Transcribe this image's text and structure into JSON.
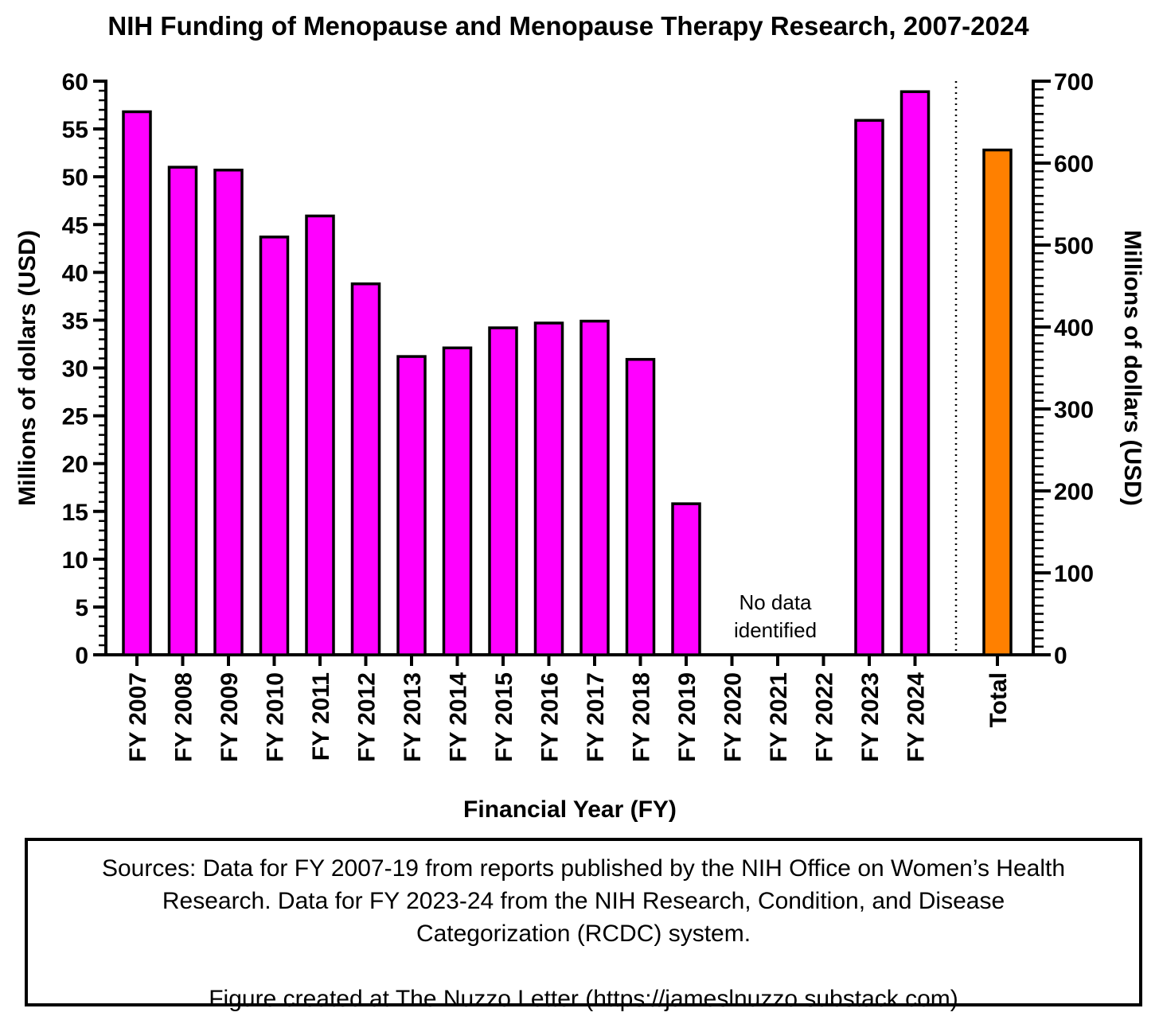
{
  "chart_data": {
    "type": "bar",
    "title": "NIH Funding of Menopause and Menopause Therapy Research, 2007-2024",
    "xlabel": "Financial Year (FY)",
    "ylabel": "Millions of dollars (USD)",
    "y2label": "Millions of dollars (USD)",
    "ylim": [
      0,
      60
    ],
    "y2lim": [
      0,
      700
    ],
    "yticks": [
      0,
      5,
      10,
      15,
      20,
      25,
      30,
      35,
      40,
      45,
      50,
      55,
      60
    ],
    "y2ticks": [
      0,
      100,
      200,
      300,
      400,
      500,
      600,
      700
    ],
    "categories": [
      "FY 2007",
      "FY 2008",
      "FY 2009",
      "FY 2010",
      "FY 2011",
      "FY 2012",
      "FY 2013",
      "FY 2014",
      "FY 2015",
      "FY 2016",
      "FY 2017",
      "FY 2018",
      "FY 2019",
      "FY 2020",
      "FY 2021",
      "FY 2022",
      "FY 2023",
      "FY 2024"
    ],
    "values": [
      56.8,
      51.0,
      50.7,
      43.7,
      45.9,
      38.8,
      31.2,
      32.1,
      34.2,
      34.7,
      34.9,
      30.9,
      15.8,
      null,
      null,
      null,
      55.9,
      58.9
    ],
    "bar_color": "#ff00ff",
    "total": {
      "label": "Total",
      "value": 616,
      "axis": "right",
      "color": "#ff8000"
    },
    "annotation": {
      "text_lines": [
        "No data",
        "identified"
      ],
      "applies_to": [
        "FY 2020",
        "FY 2021",
        "FY 2022"
      ]
    },
    "grid": false
  },
  "notes": {
    "line1": "Sources: Data for FY 2007-19 from reports published by the NIH Office on Women’s Health",
    "line2": "Research. Data for FY 2023-24 from the NIH Research, Condition, and Disease",
    "line3": "Categorization (RCDC) system.",
    "line4": "Figure created at The Nuzzo Letter (https://jameslnuzzo.substack.com)"
  }
}
